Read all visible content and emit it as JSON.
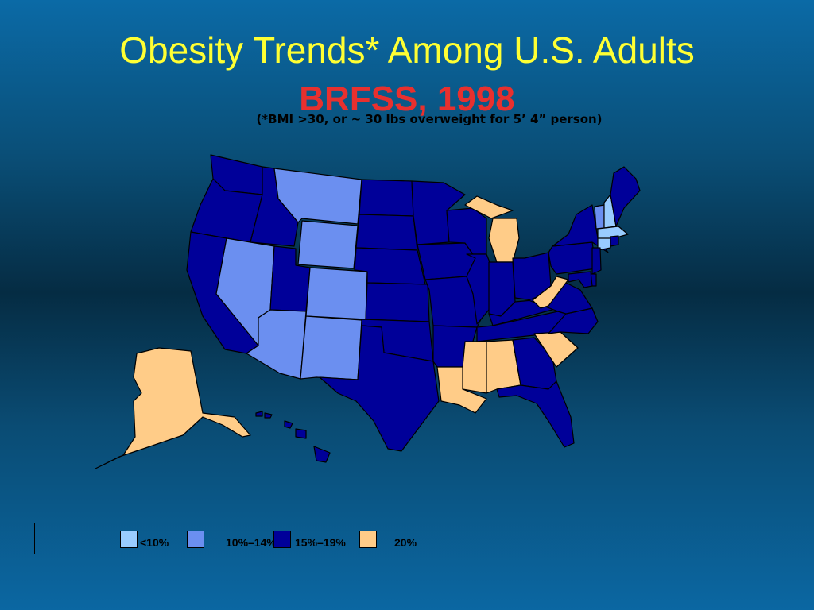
{
  "slide": {
    "title": "Obesity Trends* Among U.S. Adults",
    "subtitle": "BRFSS, 1998",
    "note": "(*BMI >30, or ~ 30 lbs overweight for 5’ 4” person)"
  },
  "legend": {
    "items": [
      {
        "label": "<10%",
        "color": "#99ccff"
      },
      {
        "label": "10%–14%",
        "color": "#6b8ff0"
      },
      {
        "label": "15%–19%",
        "color": "#000099"
      },
      {
        "label": "20%",
        "color": "#ffcc88"
      }
    ]
  },
  "map": {
    "category_colors": [
      "#99ccff",
      "#6b8ff0",
      "#000099",
      "#ffcc88"
    ],
    "states": [
      {
        "name": "Washington",
        "category": 2
      },
      {
        "name": "Oregon",
        "category": 2
      },
      {
        "name": "California",
        "category": 2
      },
      {
        "name": "Idaho",
        "category": 2
      },
      {
        "name": "Nevada",
        "category": 1
      },
      {
        "name": "Montana",
        "category": 1
      },
      {
        "name": "Wyoming",
        "category": 1
      },
      {
        "name": "Utah",
        "category": 2
      },
      {
        "name": "Arizona",
        "category": 1
      },
      {
        "name": "Colorado",
        "category": 1
      },
      {
        "name": "New Mexico",
        "category": 1
      },
      {
        "name": "North Dakota",
        "category": 2
      },
      {
        "name": "South Dakota",
        "category": 2
      },
      {
        "name": "Nebraska",
        "category": 2
      },
      {
        "name": "Kansas",
        "category": 2
      },
      {
        "name": "Oklahoma",
        "category": 2
      },
      {
        "name": "Texas",
        "category": 2
      },
      {
        "name": "Minnesota",
        "category": 2
      },
      {
        "name": "Iowa",
        "category": 2
      },
      {
        "name": "Missouri",
        "category": 2
      },
      {
        "name": "Arkansas",
        "category": 2
      },
      {
        "name": "Louisiana",
        "category": 3
      },
      {
        "name": "Wisconsin",
        "category": 2
      },
      {
        "name": "Illinois",
        "category": 2
      },
      {
        "name": "Michigan",
        "category": 3
      },
      {
        "name": "Indiana",
        "category": 2
      },
      {
        "name": "Ohio",
        "category": 2
      },
      {
        "name": "Kentucky",
        "category": 2
      },
      {
        "name": "Tennessee",
        "category": 2
      },
      {
        "name": "Mississippi",
        "category": 3
      },
      {
        "name": "Alabama",
        "category": 3
      },
      {
        "name": "Georgia",
        "category": 2
      },
      {
        "name": "Florida",
        "category": 2
      },
      {
        "name": "South Carolina",
        "category": 3
      },
      {
        "name": "North Carolina",
        "category": 2
      },
      {
        "name": "Virginia",
        "category": 2
      },
      {
        "name": "West Virginia",
        "category": 3
      },
      {
        "name": "Pennsylvania",
        "category": 2
      },
      {
        "name": "New York",
        "category": 2
      },
      {
        "name": "Vermont",
        "category": 1
      },
      {
        "name": "New Hampshire",
        "category": 0
      },
      {
        "name": "Maine",
        "category": 2
      },
      {
        "name": "Massachusetts",
        "category": 0
      },
      {
        "name": "Connecticut",
        "category": 0
      },
      {
        "name": "Rhode Island",
        "category": 2
      },
      {
        "name": "New Jersey",
        "category": 2
      },
      {
        "name": "Delaware",
        "category": 2
      },
      {
        "name": "Maryland",
        "category": 2
      },
      {
        "name": "Alaska",
        "category": 3
      },
      {
        "name": "Hawaii",
        "category": 2
      }
    ]
  }
}
